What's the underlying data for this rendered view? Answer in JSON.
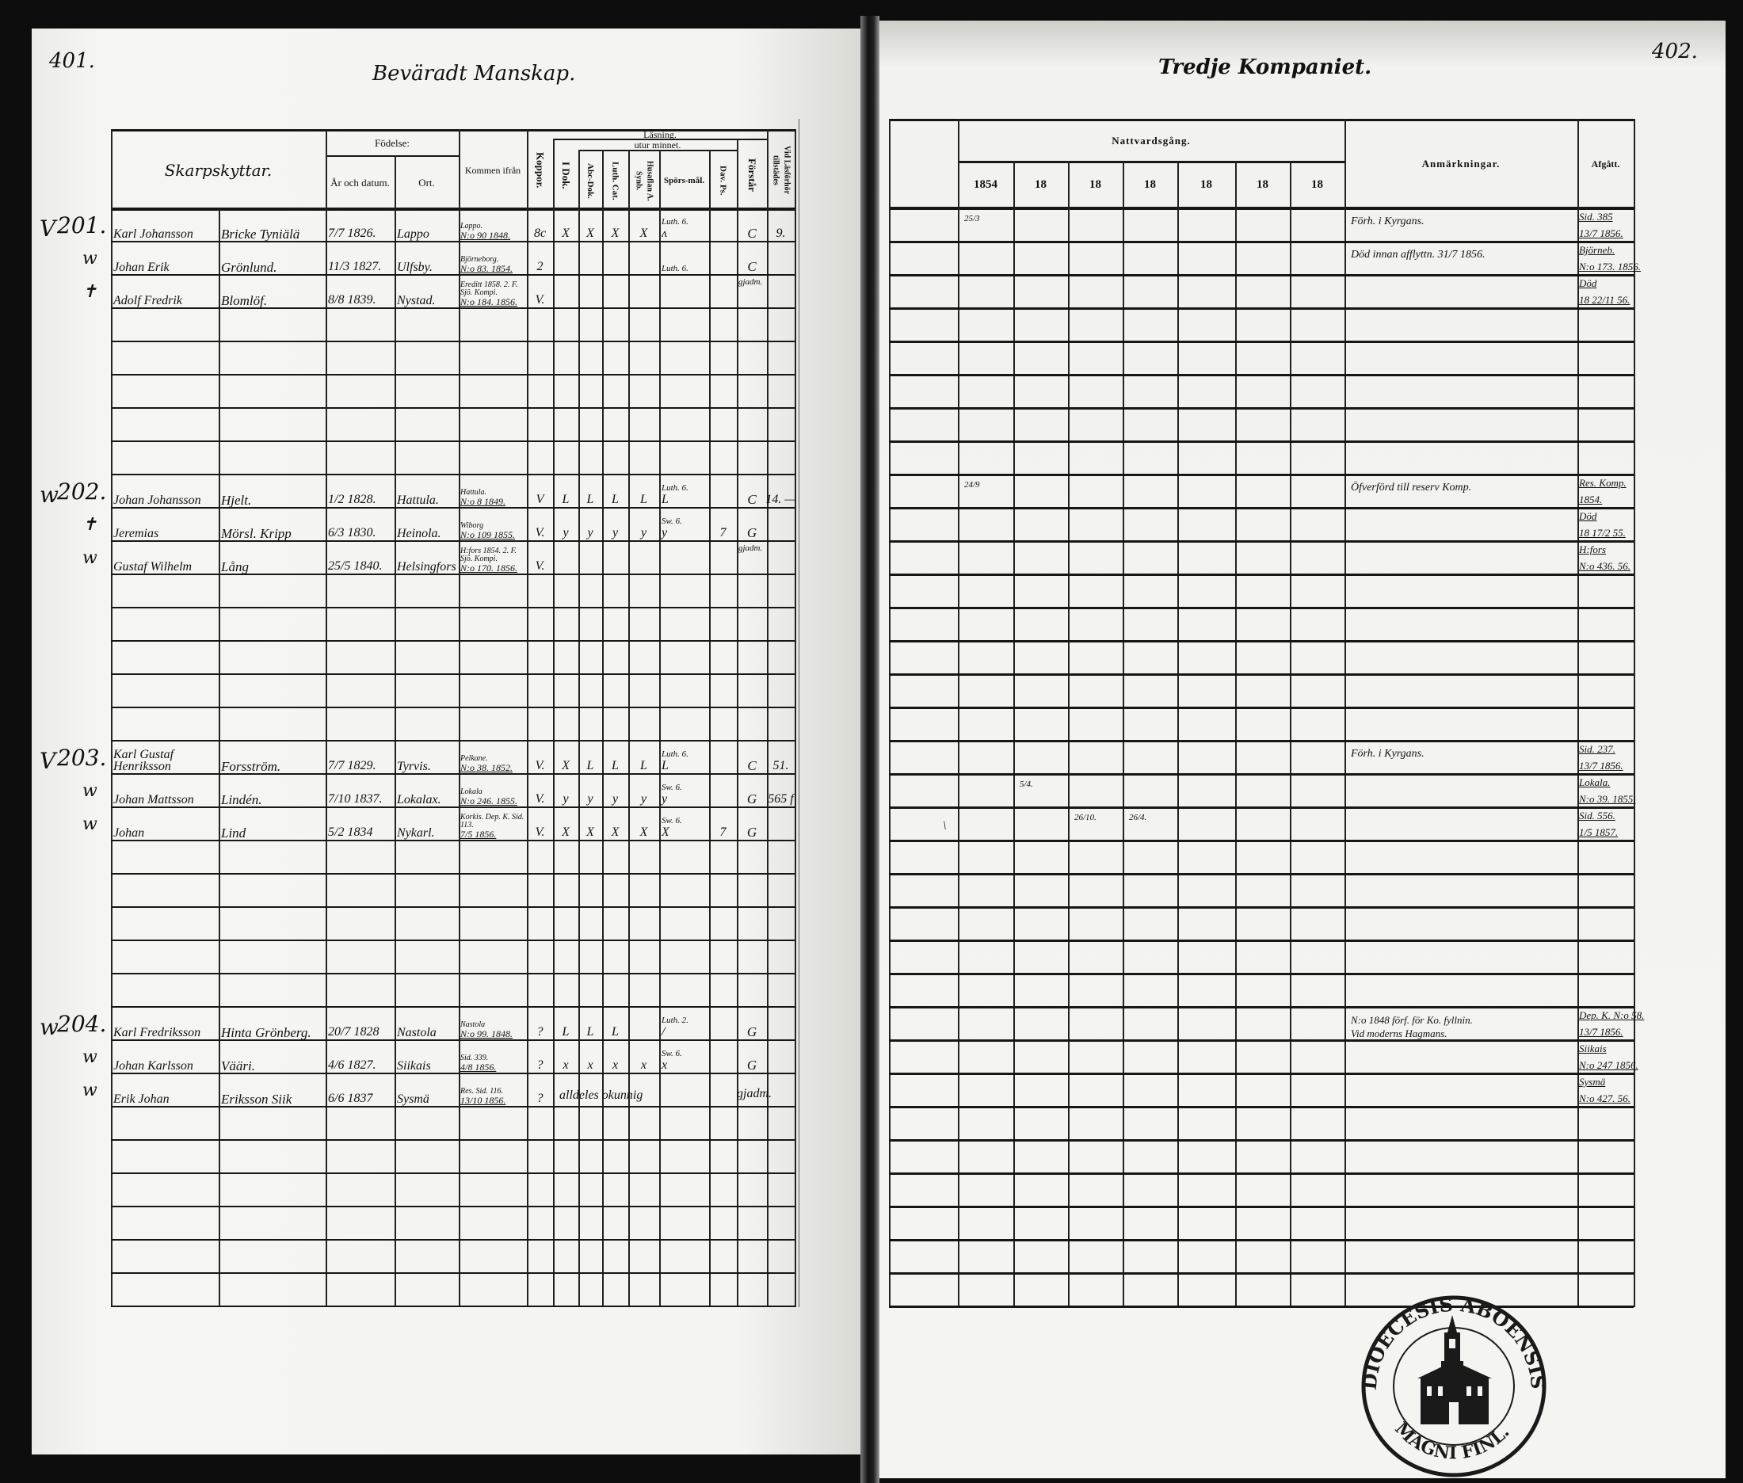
{
  "left_page": {
    "page_number": "401.",
    "title": "Beväradt Manskap."
  },
  "right_page": {
    "page_number": "402.",
    "title": "Tredje Kompaniet."
  },
  "headers": {
    "name": "Skarpskyttar.",
    "birth": "Födelse:",
    "birth_date": "År och datum.",
    "birth_place": "Ort.",
    "from": "Kommen ifrån",
    "koppor": "Koppor.",
    "reading": "Läsning.",
    "by_heart": "utur minnet.",
    "dok": "I Dok.",
    "abc": "Abc-Dok.",
    "luth": "Luth. Cat.",
    "husfl": "Husaflan A. Synb.",
    "spors": "Spörs-mål.",
    "dav": "Dav. Ps.",
    "forstar": "Förstår",
    "vid": "Vid Läsförhör tillstädes",
    "communion": "Nattvardsgång.",
    "years": [
      "1854",
      "18",
      "18",
      "18",
      "18",
      "18",
      "18"
    ],
    "remarks": "Anmärkningar.",
    "departed": "Afgått."
  },
  "entries": [
    {
      "number": "201.",
      "persons": [
        {
          "mark": "V",
          "given": "Karl Johansson",
          "surname": "Bricke Tyniälä",
          "born": "7/7 1826.",
          "place": "Lappo",
          "from": [
            "Lappo.",
            "N:o 90 1848."
          ],
          "koppor": "8c",
          "dok": "X",
          "abc": "X",
          "luth": "X",
          "husfl": "X",
          "spors_note": "Luth. 6.",
          "spors": "ʌ",
          "dav": "",
          "forstar": "C",
          "forstar_note": "",
          "vid": "9.",
          "alldeles": "",
          "right_mark": "",
          "natt": [
            "25/3",
            "",
            "",
            "",
            "",
            "",
            ""
          ],
          "anm": [
            "Förh. i Kyrgans."
          ],
          "afgatt": [
            "Sid. 385",
            "13/7 1856."
          ]
        },
        {
          "mark": "w",
          "given": "Johan Erik",
          "surname": "Grönlund.",
          "born": "11/3 1827.",
          "place": "Ulfsby.",
          "from": [
            "Björneborg.",
            "N:o 83. 1854."
          ],
          "koppor": "2",
          "dok": "",
          "abc": "",
          "luth": "",
          "husfl": "",
          "spors_note": "Luth. 6.",
          "spors": "",
          "dav": "",
          "forstar": "C",
          "forstar_note": "gjadm.",
          "vid": "",
          "alldeles": "",
          "right_mark": "",
          "natt": [
            "",
            "",
            "",
            "",
            "",
            "",
            ""
          ],
          "anm": [
            "Död innan afflyttn. 31/7 1856."
          ],
          "afgatt": [
            "Björneb.",
            "N:o 173. 1856."
          ]
        },
        {
          "mark": "✝",
          "given": "Adolf Fredrik",
          "surname": "Blomlöf.",
          "born": "8/8 1839.",
          "place": "Nystad.",
          "from": [
            "Ereditt 1858. 2. F. Sjö. Kompi.",
            "N:o 184. 1856."
          ],
          "koppor": "V.",
          "dok": "",
          "abc": "",
          "luth": "",
          "husfl": "",
          "spors_note": "",
          "spors": "",
          "dav": "",
          "forstar": "",
          "forstar_note": "",
          "vid": "",
          "alldeles": "",
          "right_mark": "",
          "natt": [
            "",
            "",
            "",
            "",
            "",
            "",
            ""
          ],
          "anm": [
            ""
          ],
          "afgatt": [
            "Död",
            "18 22/11 56."
          ]
        }
      ]
    },
    {
      "number": "202.",
      "persons": [
        {
          "mark": "w",
          "given": "Johan Johansson",
          "surname": "Hjelt.",
          "born": "1/2 1828.",
          "place": "Hattula.",
          "from": [
            "Hattula.",
            "N:o 8 1849."
          ],
          "koppor": "V",
          "dok": "L",
          "abc": "L",
          "luth": "L",
          "husfl": "L",
          "spors_note": "Luth. 6.",
          "spors": "L",
          "dav": "",
          "forstar": "C",
          "forstar_note": "",
          "vid": "14. —",
          "alldeles": "",
          "right_mark": "",
          "natt": [
            "24/9",
            "",
            "",
            "",
            "",
            "",
            ""
          ],
          "anm": [
            "Öfverförd till reserv Komp."
          ],
          "afgatt": [
            "Res. Komp.",
            "1854."
          ]
        },
        {
          "mark": "✝",
          "given": "Jeremias",
          "surname": "Mörsl. Kripp",
          "born": "6/3 1830.",
          "place": "Heinola.",
          "from": [
            "Wiborg",
            "N:o 109 1855."
          ],
          "koppor": "V.",
          "dok": "y",
          "abc": "y",
          "luth": "y",
          "husfl": "y",
          "spors_note": "Sw. 6.",
          "spors": "y",
          "dav": "7",
          "forstar": "G",
          "forstar_note": "gjadm.",
          "vid": "",
          "alldeles": "",
          "right_mark": "",
          "natt": [
            "",
            "",
            "",
            "",
            "",
            "",
            ""
          ],
          "anm": [
            ""
          ],
          "afgatt": [
            "Död",
            "18 17/2 55."
          ]
        },
        {
          "mark": "w",
          "given": "Gustaf Wilhelm",
          "surname": "Lång",
          "born": "25/5 1840.",
          "place": "Helsingfors",
          "from": [
            "H:fors 1854. 2. F. Sjö. Kompi.",
            "N:o 170. 1856."
          ],
          "koppor": "V.",
          "dok": "",
          "abc": "",
          "luth": "",
          "husfl": "",
          "spors_note": "",
          "spors": "",
          "dav": "",
          "forstar": "",
          "forstar_note": "",
          "vid": "",
          "alldeles": "",
          "right_mark": "",
          "natt": [
            "",
            "",
            "",
            "",
            "",
            "",
            ""
          ],
          "anm": [
            ""
          ],
          "afgatt": [
            "H:fors",
            "N:o 436. 56."
          ]
        }
      ]
    },
    {
      "number": "203.",
      "persons": [
        {
          "mark": "V",
          "given": "Karl Gustaf Henriksson",
          "surname": "Forsström.",
          "born": "7/7 1829.",
          "place": "Tyrvis.",
          "from": [
            "Pelkane.",
            "N:o 38. 1852."
          ],
          "koppor": "V.",
          "dok": "X",
          "abc": "L",
          "luth": "L",
          "husfl": "L",
          "spors_note": "Luth. 6.",
          "spors": "L",
          "dav": "",
          "forstar": "C",
          "forstar_note": "",
          "vid": "51.",
          "alldeles": "",
          "right_mark": "",
          "natt": [
            "",
            "",
            "",
            "",
            "",
            "",
            ""
          ],
          "anm": [
            "Förh. i Kyrgans."
          ],
          "afgatt": [
            "Sid. 237.",
            "13/7 1856."
          ]
        },
        {
          "mark": "w",
          "given": "Johan Mattsson",
          "surname": "Lindén.",
          "born": "7/10 1837.",
          "place": "Lokalax.",
          "from": [
            "Lokala",
            "N:o 246. 1855."
          ],
          "koppor": "V.",
          "dok": "y",
          "abc": "y",
          "luth": "y",
          "husfl": "y",
          "spors_note": "Sw. 6.",
          "spors": "y",
          "dav": "",
          "forstar": "G",
          "forstar_note": "",
          "vid": "565 f",
          "alldeles": "",
          "right_mark": "",
          "natt": [
            "",
            "5/4.",
            "",
            "",
            "",
            "",
            ""
          ],
          "anm": [
            ""
          ],
          "afgatt": [
            "Lokala.",
            "N:o 39. 1855."
          ]
        },
        {
          "mark": "w",
          "given": "Johan",
          "surname": "Lind",
          "born": "5/2 1834",
          "place": "Nykarl.",
          "from": [
            "Korkis. Dep. K. Sid. 113.",
            "7/5 1856."
          ],
          "koppor": "V.",
          "dok": "X",
          "abc": "X",
          "luth": "X",
          "husfl": "X",
          "spors_note": "Sw. 6.",
          "spors": "X",
          "dav": "7",
          "forstar": "G",
          "forstar_note": "",
          "vid": "",
          "alldeles": "",
          "right_mark": "\\",
          "natt": [
            "",
            "",
            "26/10.",
            "26/4.",
            "",
            "",
            ""
          ],
          "anm": [
            ""
          ],
          "afgatt": [
            "Sid. 556.",
            "1/5 1857."
          ]
        }
      ]
    },
    {
      "number": "204.",
      "persons": [
        {
          "mark": "w",
          "given": "Karl Fredriksson",
          "surname": "Hinta Grönberg.",
          "born": "20/7 1828",
          "place": "Nastola",
          "from": [
            "Nastola",
            "N:o 99. 1848."
          ],
          "koppor": "?",
          "dok": "L",
          "abc": "L",
          "luth": "L",
          "husfl": "",
          "spors_note": "Luth. 2.",
          "spors": "/",
          "dav": "",
          "forstar": "G",
          "forstar_note": "",
          "vid": "",
          "alldeles": "",
          "right_mark": "",
          "natt": [
            "",
            "",
            "",
            "",
            "",
            "",
            ""
          ],
          "anm": [
            "N:o 1848 förf. för Ko. fyllnin.",
            "Vid moderns Hagmans."
          ],
          "afgatt": [
            "Dep. K. N:o 58.",
            "13/7 1856."
          ]
        },
        {
          "mark": "w",
          "given": "Johan Karlsson",
          "surname": "Vääri.",
          "born": "4/6 1827.",
          "place": "Siikais",
          "from": [
            "Sid. 339.",
            "4/8 1856."
          ],
          "koppor": "?",
          "dok": "x",
          "abc": "x",
          "luth": "x",
          "husfl": "x",
          "spors_note": "Sw. 6.",
          "spors": "x",
          "dav": "",
          "forstar": "G",
          "forstar_note": "",
          "vid": "",
          "alldeles": "",
          "right_mark": "",
          "natt": [
            "",
            "",
            "",
            "",
            "",
            "",
            ""
          ],
          "anm": [
            ""
          ],
          "afgatt": [
            "Siikais",
            "N:o 247 1856."
          ]
        },
        {
          "mark": "w",
          "given": "Erik Johan",
          "surname": "Eriksson Siik",
          "born": "6/6 1837",
          "place": "Sysmä",
          "from": [
            "Res. Sid. 116.",
            "13/10 1856."
          ],
          "koppor": "?",
          "dok": "",
          "abc": "",
          "luth": "",
          "husfl": "",
          "spors_note": "",
          "spors": "",
          "dav": "",
          "forstar": "",
          "forstar_note": "",
          "vid": "",
          "alldeles": "alldeles okunnig",
          "right_mark": "",
          "natt": [
            "",
            "",
            "",
            "",
            "",
            "",
            ""
          ],
          "anm": [
            ""
          ],
          "afgatt": [
            "Sysmä",
            "N:o 427. 56."
          ],
          "after_note": "gjadm."
        }
      ]
    }
  ],
  "stamp": {
    "top": "DIOECESIS ABOENSIS.",
    "bottom": "MAGNI FINL.",
    "ink": "#1a1a1a"
  }
}
